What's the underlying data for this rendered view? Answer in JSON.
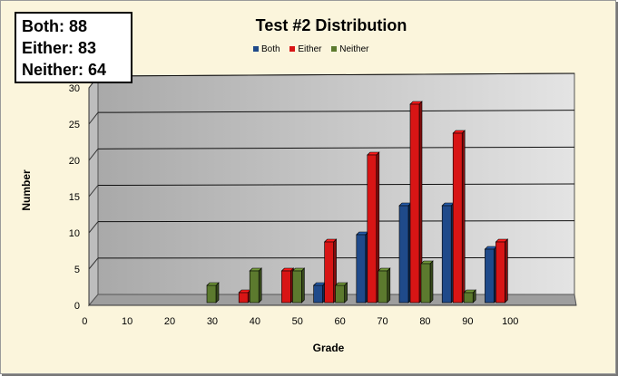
{
  "stats": {
    "both": "Both: 88",
    "either": "Either: 83",
    "neither": "Neither: 64"
  },
  "colors": {
    "Both": "#1f4a8a",
    "Either": "#d81515",
    "Neither": "#5c7a2e"
  },
  "chart_data": {
    "type": "bar",
    "title": "Test #2 Distribution",
    "xlabel": "Grade",
    "ylabel": "Number",
    "categories": [
      "0",
      "10",
      "20",
      "30",
      "40",
      "50",
      "60",
      "70",
      "80",
      "90",
      "100"
    ],
    "series": [
      {
        "name": "Both",
        "values": [
          0,
          0,
          0,
          0,
          0,
          0,
          2,
          9,
          13,
          13,
          7
        ]
      },
      {
        "name": "Either",
        "values": [
          0,
          0,
          0,
          0,
          1,
          4,
          8,
          20,
          27,
          23,
          8
        ]
      },
      {
        "name": "Neither",
        "values": [
          0,
          0,
          0,
          2,
          4,
          4,
          2,
          4,
          5,
          1,
          0
        ]
      }
    ],
    "ylim": [
      0,
      30
    ],
    "yticks": [
      0,
      5,
      10,
      15,
      20,
      25,
      30
    ],
    "grid": true,
    "legend": "top"
  }
}
